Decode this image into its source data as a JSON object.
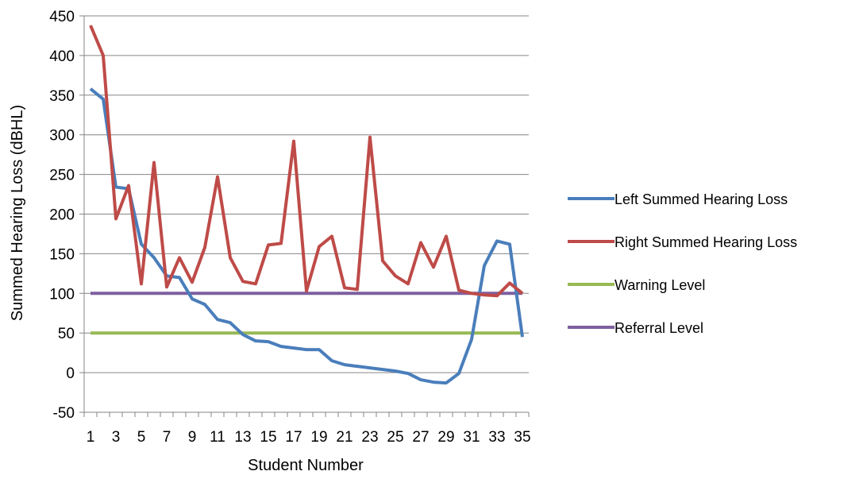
{
  "chart_data": {
    "type": "line",
    "title": "",
    "xlabel": "Student Number",
    "ylabel": "Summed Hearing Loss (dBHL)",
    "ylim": [
      -50,
      450
    ],
    "yticks": [
      -50,
      0,
      50,
      100,
      150,
      200,
      250,
      300,
      350,
      400,
      450
    ],
    "xlim": [
      1,
      35
    ],
    "xtick_labels": [
      "1",
      "3",
      "5",
      "7",
      "9",
      "11",
      "13",
      "15",
      "17",
      "19",
      "21",
      "23",
      "25",
      "27",
      "29",
      "31",
      "33",
      "35"
    ],
    "x": [
      1,
      2,
      3,
      4,
      5,
      6,
      7,
      8,
      9,
      10,
      11,
      12,
      13,
      14,
      15,
      16,
      17,
      18,
      19,
      20,
      21,
      22,
      23,
      24,
      25,
      26,
      27,
      28,
      29,
      30,
      31,
      32,
      33,
      34,
      35
    ],
    "grid": "horizontal",
    "legend_position": "right",
    "series": [
      {
        "name": "Left Summed Hearing Loss",
        "color": "#4A7EBB",
        "values": [
          358,
          345,
          234,
          232,
          162,
          145,
          122,
          120,
          93,
          86,
          67,
          63,
          48,
          40,
          39,
          33,
          31,
          29,
          29,
          15,
          10,
          8,
          6,
          4,
          2,
          -1,
          -9,
          -12,
          -13,
          -1,
          42,
          135,
          166,
          162,
          45
        ]
      },
      {
        "name": "Right Summed Hearing Loss",
        "color": "#BE4B48",
        "values": [
          438,
          400,
          194,
          236,
          112,
          265,
          108,
          145,
          114,
          158,
          247,
          145,
          115,
          112,
          161,
          163,
          292,
          103,
          159,
          172,
          107,
          105,
          297,
          141,
          122,
          112,
          164,
          133,
          172,
          104,
          100,
          98,
          97,
          113,
          100
        ]
      },
      {
        "name": "Warning Level",
        "color": "#98B954",
        "values": [
          50,
          50,
          50,
          50,
          50,
          50,
          50,
          50,
          50,
          50,
          50,
          50,
          50,
          50,
          50,
          50,
          50,
          50,
          50,
          50,
          50,
          50,
          50,
          50,
          50,
          50,
          50,
          50,
          50,
          50,
          50,
          50,
          50,
          50,
          50
        ]
      },
      {
        "name": "Referral Level",
        "color": "#7D60A0",
        "values": [
          100,
          100,
          100,
          100,
          100,
          100,
          100,
          100,
          100,
          100,
          100,
          100,
          100,
          100,
          100,
          100,
          100,
          100,
          100,
          100,
          100,
          100,
          100,
          100,
          100,
          100,
          100,
          100,
          100,
          100,
          100,
          100,
          100,
          100,
          100
        ]
      }
    ]
  }
}
